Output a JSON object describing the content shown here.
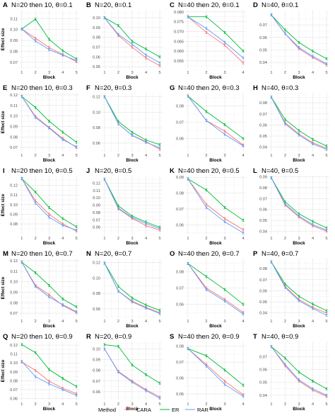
{
  "legend": {
    "title": "Method",
    "items": [
      {
        "label": "CARA",
        "color": "#F8766D"
      },
      {
        "label": "ER",
        "color": "#00BA38"
      },
      {
        "label": "RAR",
        "color": "#619CFF"
      }
    ]
  },
  "chart_data": [
    {
      "type": "line",
      "panel": "A",
      "title": "N=20 then 10, θ=0.1",
      "xlabel": "Block",
      "ylabel": "Effect size",
      "x": [
        1,
        2,
        3,
        4,
        5
      ],
      "ylim": [
        0.064,
        0.118
      ],
      "yticks": [
        0.07,
        0.08,
        0.09,
        0.1,
        0.11
      ],
      "series": [
        {
          "name": "CARA",
          "values": [
            0.1005,
            0.092,
            0.0835,
            0.077,
            0.0705
          ]
        },
        {
          "name": "ER",
          "values": [
            0.1005,
            0.1095,
            0.091,
            0.0805,
            0.073
          ]
        },
        {
          "name": "RAR",
          "values": [
            0.1005,
            0.0895,
            0.0815,
            0.0765,
            0.0715
          ]
        }
      ]
    },
    {
      "type": "line",
      "panel": "B",
      "title": "N=20, θ=0.1",
      "xlabel": "Block",
      "ylabel": "",
      "x": [
        1,
        2,
        3,
        4,
        5
      ],
      "ylim": [
        0.048,
        0.108
      ],
      "yticks": [
        0.05,
        0.06,
        0.07,
        0.08,
        0.09,
        0.1
      ],
      "series": [
        {
          "name": "CARA",
          "values": [
            0.1,
            0.082,
            0.07,
            0.059,
            0.051
          ]
        },
        {
          "name": "ER",
          "values": [
            0.1,
            0.092,
            0.076,
            0.068,
            0.06
          ]
        },
        {
          "name": "RAR",
          "values": [
            0.1,
            0.083,
            0.073,
            0.062,
            0.054
          ]
        }
      ]
    },
    {
      "type": "line",
      "panel": "C",
      "title": "N=40 then 20, θ=0.1",
      "xlabel": "Block",
      "ylabel": "",
      "x": [
        1,
        2,
        3,
        4
      ],
      "ylim": [
        0.051,
        0.081
      ],
      "yticks": [
        0.055,
        0.06,
        0.065,
        0.07,
        0.075,
        0.08
      ],
      "series": [
        {
          "name": "CARA",
          "values": [
            0.0775,
            0.0695,
            0.063,
            0.054
          ]
        },
        {
          "name": "ER",
          "values": [
            0.0775,
            0.0775,
            0.0695,
            0.06
          ]
        },
        {
          "name": "RAR",
          "values": [
            0.0775,
            0.0715,
            0.0645,
            0.0565
          ]
        }
      ]
    },
    {
      "type": "line",
      "panel": "D",
      "title": "N=40, θ=0.1",
      "xlabel": "Block",
      "ylabel": "",
      "x": [
        1,
        2,
        3,
        4,
        5
      ],
      "ylim": [
        0.035,
        0.082
      ],
      "yticks": [
        0.04,
        0.05,
        0.06,
        0.07
      ],
      "series": [
        {
          "name": "CARA",
          "values": [
            0.078,
            0.063,
            0.051,
            0.044,
            0.038
          ]
        },
        {
          "name": "ER",
          "values": [
            0.078,
            0.066,
            0.056,
            0.049,
            0.043
          ]
        },
        {
          "name": "RAR",
          "values": [
            0.078,
            0.063,
            0.052,
            0.045,
            0.039
          ]
        }
      ]
    },
    {
      "type": "line",
      "panel": "E",
      "title": "N=20 then 10, θ=0.3",
      "xlabel": "Block",
      "ylabel": "Effect size",
      "x": [
        1,
        2,
        3,
        4,
        5
      ],
      "ylim": [
        0.066,
        0.122
      ],
      "yticks": [
        0.07,
        0.08,
        0.09,
        0.1,
        0.11,
        0.12
      ],
      "series": [
        {
          "name": "CARA",
          "values": [
            0.1185,
            0.0995,
            0.089,
            0.0785,
            0.07
          ]
        },
        {
          "name": "ER",
          "values": [
            0.1185,
            0.108,
            0.095,
            0.0845,
            0.075
          ]
        },
        {
          "name": "RAR",
          "values": [
            0.1185,
            0.0985,
            0.0885,
            0.0775,
            0.0705
          ]
        }
      ]
    },
    {
      "type": "line",
      "panel": "F",
      "title": "N=20, θ=0.3",
      "xlabel": "Block",
      "ylabel": "",
      "x": [
        1,
        2,
        3,
        4,
        5
      ],
      "ylim": [
        0.049,
        0.125
      ],
      "yticks": [
        0.06,
        0.08,
        0.1,
        0.12
      ],
      "series": [
        {
          "name": "CARA",
          "values": [
            0.12,
            0.085,
            0.07,
            0.062,
            0.052
          ]
        },
        {
          "name": "ER",
          "values": [
            0.12,
            0.088,
            0.074,
            0.064,
            0.058
          ]
        },
        {
          "name": "RAR",
          "values": [
            0.12,
            0.085,
            0.07,
            0.061,
            0.054
          ]
        }
      ]
    },
    {
      "type": "line",
      "panel": "G",
      "title": "N=40 then 20, θ=0.3",
      "xlabel": "Block",
      "ylabel": "",
      "x": [
        1,
        2,
        3,
        4
      ],
      "ylim": [
        0.052,
        0.088
      ],
      "yticks": [
        0.06,
        0.07,
        0.08
      ],
      "series": [
        {
          "name": "CARA",
          "values": [
            0.086,
            0.071,
            0.0645,
            0.056
          ]
        },
        {
          "name": "ER",
          "values": [
            0.086,
            0.0765,
            0.0685,
            0.06
          ]
        },
        {
          "name": "RAR",
          "values": [
            0.086,
            0.071,
            0.0625,
            0.0555
          ]
        }
      ]
    },
    {
      "type": "line",
      "panel": "H",
      "title": "N=40, θ=0.3",
      "xlabel": "Block",
      "ylabel": "",
      "x": [
        1,
        2,
        3,
        4,
        5
      ],
      "ylim": [
        0.036,
        0.089
      ],
      "yticks": [
        0.04,
        0.05,
        0.06,
        0.07,
        0.08
      ],
      "series": [
        {
          "name": "CARA",
          "values": [
            0.085,
            0.062,
            0.052,
            0.044,
            0.039
          ]
        },
        {
          "name": "ER",
          "values": [
            0.085,
            0.065,
            0.055,
            0.047,
            0.041
          ]
        },
        {
          "name": "RAR",
          "values": [
            0.085,
            0.061,
            0.051,
            0.043,
            0.038
          ]
        }
      ]
    },
    {
      "type": "line",
      "panel": "I",
      "title": "N=20 then 10, θ=0.5",
      "xlabel": "Block",
      "ylabel": "Effect size",
      "x": [
        1,
        2,
        3,
        4,
        5
      ],
      "ylim": [
        0.069,
        0.13
      ],
      "yticks": [
        0.08,
        0.09,
        0.1,
        0.11,
        0.12
      ],
      "series": [
        {
          "name": "CARA",
          "values": [
            0.127,
            0.104,
            0.09,
            0.08,
            0.0725
          ]
        },
        {
          "name": "ER",
          "values": [
            0.127,
            0.113,
            0.097,
            0.0855,
            0.077
          ]
        },
        {
          "name": "RAR",
          "values": [
            0.127,
            0.1015,
            0.087,
            0.0785,
            0.0735
          ]
        }
      ]
    },
    {
      "type": "line",
      "panel": "J",
      "title": "N=20, θ=0.5",
      "xlabel": "Block",
      "ylabel": "",
      "x": [
        1,
        2,
        3,
        4,
        5
      ],
      "ylim": [
        0.05,
        0.13
      ],
      "yticks": [
        0.06,
        0.07,
        0.08,
        0.09,
        0.1,
        0.11,
        0.12
      ],
      "series": [
        {
          "name": "CARA",
          "values": [
            0.125,
            0.085,
            0.072,
            0.062,
            0.056
          ]
        },
        {
          "name": "ER",
          "values": [
            0.125,
            0.089,
            0.075,
            0.067,
            0.06
          ]
        },
        {
          "name": "RAR",
          "values": [
            0.125,
            0.086,
            0.073,
            0.065,
            0.058
          ]
        }
      ]
    },
    {
      "type": "line",
      "panel": "K",
      "title": "N=40 then 20, θ=0.5",
      "xlabel": "Block",
      "ylabel": "",
      "x": [
        1,
        2,
        3,
        4
      ],
      "ylim": [
        0.054,
        0.091
      ],
      "yticks": [
        0.06,
        0.07,
        0.08,
        0.09
      ],
      "series": [
        {
          "name": "CARA",
          "values": [
            0.089,
            0.073,
            0.064,
            0.057
          ]
        },
        {
          "name": "ER",
          "values": [
            0.089,
            0.082,
            0.071,
            0.063
          ]
        },
        {
          "name": "RAR",
          "values": [
            0.089,
            0.071,
            0.062,
            0.055
          ]
        }
      ]
    },
    {
      "type": "line",
      "panel": "L",
      "title": "N=40, θ=0.5",
      "xlabel": "Block",
      "ylabel": "",
      "x": [
        1,
        2,
        3,
        4,
        5
      ],
      "ylim": [
        0.037,
        0.091
      ],
      "yticks": [
        0.04,
        0.05,
        0.06,
        0.07,
        0.08,
        0.09
      ],
      "series": [
        {
          "name": "CARA",
          "values": [
            0.089,
            0.064,
            0.053,
            0.045,
            0.04
          ]
        },
        {
          "name": "ER",
          "values": [
            0.089,
            0.067,
            0.056,
            0.049,
            0.043
          ]
        },
        {
          "name": "RAR",
          "values": [
            0.089,
            0.065,
            0.054,
            0.046,
            0.041
          ]
        }
      ]
    },
    {
      "type": "line",
      "panel": "M",
      "title": "N=20 then 10, θ=0.7",
      "xlabel": "Block",
      "ylabel": "Effect size",
      "x": [
        1,
        2,
        3,
        4,
        5
      ],
      "ylim": [
        0.066,
        0.122
      ],
      "yticks": [
        0.07,
        0.08,
        0.09,
        0.1,
        0.11,
        0.12
      ],
      "series": [
        {
          "name": "CARA",
          "values": [
            0.1185,
            0.0965,
            0.0875,
            0.0775,
            0.0705
          ]
        },
        {
          "name": "ER",
          "values": [
            0.1185,
            0.1085,
            0.0965,
            0.0835,
            0.076
          ]
        },
        {
          "name": "RAR",
          "values": [
            0.1185,
            0.0955,
            0.0855,
            0.078,
            0.0715
          ]
        }
      ]
    },
    {
      "type": "line",
      "panel": "N",
      "title": "N=20, θ=0.7",
      "xlabel": "Block",
      "ylabel": "",
      "x": [
        1,
        2,
        3,
        4,
        5
      ],
      "ylim": [
        0.049,
        0.125
      ],
      "yticks": [
        0.06,
        0.08,
        0.1,
        0.12
      ],
      "series": [
        {
          "name": "CARA",
          "values": [
            0.119,
            0.083,
            0.07,
            0.062,
            0.055
          ]
        },
        {
          "name": "ER",
          "values": [
            0.119,
            0.089,
            0.074,
            0.065,
            0.058
          ]
        },
        {
          "name": "RAR",
          "values": [
            0.119,
            0.083,
            0.069,
            0.061,
            0.054
          ]
        }
      ]
    },
    {
      "type": "line",
      "panel": "O",
      "title": "N=40 then 20, θ=0.7",
      "xlabel": "Block",
      "ylabel": "",
      "x": [
        1,
        2,
        3,
        4
      ],
      "ylim": [
        0.052,
        0.088
      ],
      "yticks": [
        0.06,
        0.07,
        0.08
      ],
      "series": [
        {
          "name": "CARA",
          "values": [
            0.085,
            0.07,
            0.063,
            0.055
          ]
        },
        {
          "name": "ER",
          "values": [
            0.085,
            0.077,
            0.069,
            0.06
          ]
        },
        {
          "name": "RAR",
          "values": [
            0.085,
            0.069,
            0.062,
            0.054
          ]
        }
      ]
    },
    {
      "type": "line",
      "panel": "P",
      "title": "N=40, θ=0.7",
      "xlabel": "Block",
      "ylabel": "",
      "x": [
        1,
        2,
        3,
        4,
        5
      ],
      "ylim": [
        0.036,
        0.089
      ],
      "yticks": [
        0.04,
        0.05,
        0.06,
        0.07,
        0.08
      ],
      "series": [
        {
          "name": "CARA",
          "values": [
            0.086,
            0.064,
            0.052,
            0.045,
            0.04
          ]
        },
        {
          "name": "ER",
          "values": [
            0.086,
            0.066,
            0.055,
            0.048,
            0.042
          ]
        },
        {
          "name": "RAR",
          "values": [
            0.086,
            0.063,
            0.051,
            0.044,
            0.038
          ]
        }
      ]
    },
    {
      "type": "line",
      "panel": "Q",
      "title": "N=20 then 10, θ=0.9",
      "xlabel": "Block",
      "ylabel": "Effect size",
      "x": [
        1,
        2,
        3,
        4,
        5
      ],
      "ylim": [
        0.058,
        0.124
      ],
      "yticks": [
        0.06,
        0.07,
        0.08,
        0.09,
        0.1,
        0.11,
        0.12
      ],
      "series": [
        {
          "name": "CARA",
          "values": [
            0.101,
            0.0915,
            0.0795,
            0.0715,
            0.0655
          ]
        },
        {
          "name": "ER",
          "values": [
            0.1205,
            0.1115,
            0.0925,
            0.0825,
            0.0735
          ]
        },
        {
          "name": "RAR",
          "values": [
            0.1015,
            0.0845,
            0.0765,
            0.07,
            0.0635
          ]
        }
      ]
    },
    {
      "type": "line",
      "panel": "R",
      "title": "N=20, θ=0.9",
      "xlabel": "Block",
      "ylabel": "",
      "x": [
        1,
        2,
        3,
        4,
        5
      ],
      "ylim": [
        0.052,
        0.107
      ],
      "yticks": [
        0.06,
        0.07,
        0.08,
        0.09,
        0.1
      ],
      "series": [
        {
          "name": "CARA",
          "values": [
            0.1,
            0.079,
            0.07,
            0.062,
            0.055
          ]
        },
        {
          "name": "ER",
          "values": [
            0.104,
            0.1025,
            0.085,
            0.076,
            0.068
          ]
        },
        {
          "name": "RAR",
          "values": [
            0.1,
            0.0785,
            0.069,
            0.061,
            0.054
          ]
        }
      ]
    },
    {
      "type": "line",
      "panel": "S",
      "title": "N=40 then 20, θ=0.9",
      "xlabel": "Block",
      "ylabel": "",
      "x": [
        1,
        2,
        3,
        4
      ],
      "ylim": [
        0.046,
        0.083
      ],
      "yticks": [
        0.05,
        0.06,
        0.07,
        0.08
      ],
      "series": [
        {
          "name": "CARA",
          "values": [
            0.0785,
            0.0685,
            0.058,
            0.0495
          ]
        },
        {
          "name": "ER",
          "values": [
            0.0785,
            0.074,
            0.065,
            0.0555
          ]
        },
        {
          "name": "RAR",
          "values": [
            0.0785,
            0.0675,
            0.056,
            0.0485
          ]
        }
      ]
    },
    {
      "type": "line",
      "panel": "T",
      "title": "N=40, θ=0.9",
      "xlabel": "Block",
      "ylabel": "",
      "x": [
        1,
        2,
        3,
        4,
        5
      ],
      "ylim": [
        0.036,
        0.082
      ],
      "yticks": [
        0.04,
        0.05,
        0.06,
        0.07
      ],
      "series": [
        {
          "name": "CARA",
          "values": [
            0.078,
            0.063,
            0.051,
            0.044,
            0.039
          ]
        },
        {
          "name": "ER",
          "values": [
            0.078,
            0.069,
            0.058,
            0.051,
            0.045
          ]
        },
        {
          "name": "RAR",
          "values": [
            0.078,
            0.064,
            0.052,
            0.045,
            0.04
          ]
        }
      ]
    }
  ]
}
